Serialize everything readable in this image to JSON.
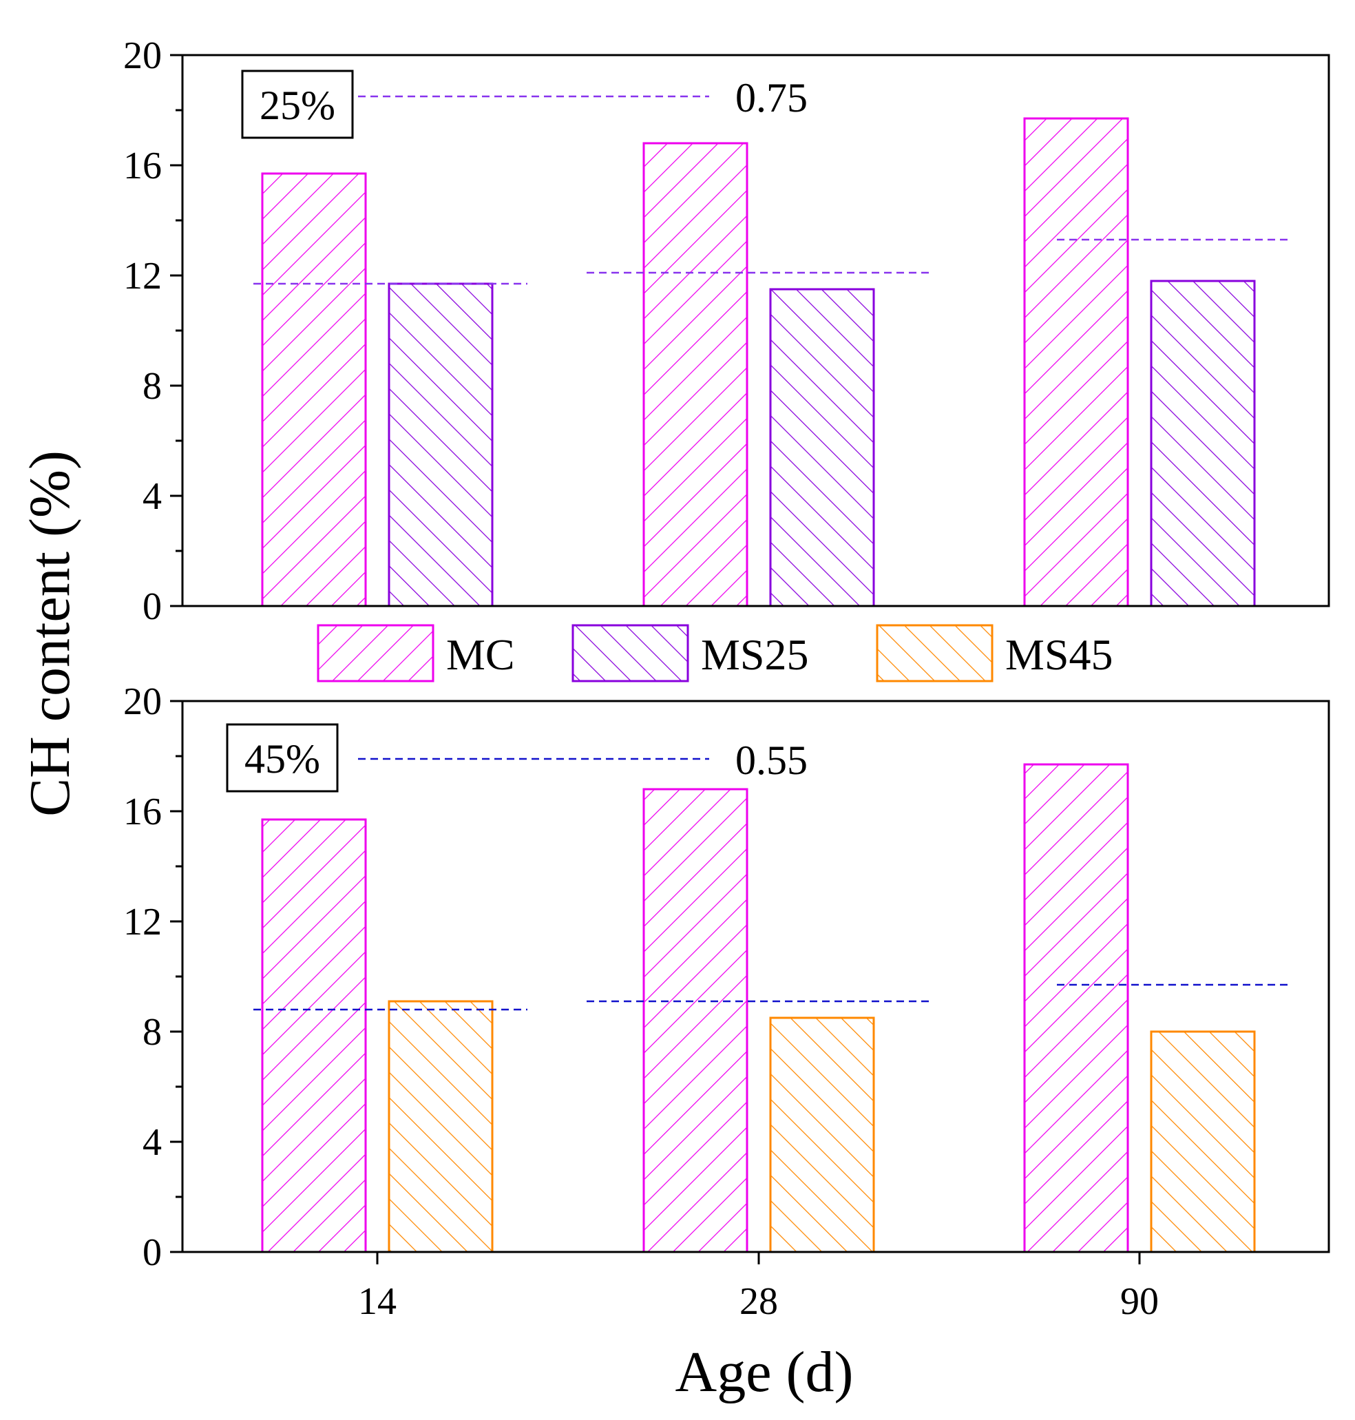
{
  "chart_data": [
    {
      "type": "bar",
      "panel": "top",
      "label": "25%",
      "categories": [
        "14",
        "28",
        "90"
      ],
      "ylim": [
        0,
        20
      ],
      "yticks": [
        0,
        4,
        8,
        12,
        16,
        20
      ],
      "series": [
        {
          "name": "MC",
          "color": "#ee00ee",
          "values": [
            15.7,
            16.8,
            17.7
          ]
        },
        {
          "name": "MS25",
          "color": "#8800dd",
          "values": [
            11.7,
            11.5,
            11.8
          ]
        }
      ],
      "reference_lines": [
        11.7,
        12.1,
        13.3
      ],
      "reference_color": "#8833ee",
      "annotation": {
        "line_value": 18.5,
        "text": "0.75"
      }
    },
    {
      "type": "bar",
      "panel": "bottom",
      "label": "45%",
      "categories": [
        "14",
        "28",
        "90"
      ],
      "ylim": [
        0,
        20
      ],
      "yticks": [
        0,
        4,
        8,
        12,
        16,
        20
      ],
      "series": [
        {
          "name": "MC",
          "color": "#ee00ee",
          "values": [
            15.7,
            16.8,
            17.7
          ]
        },
        {
          "name": "MS45",
          "color": "#ff8800",
          "values": [
            9.1,
            8.5,
            8.0
          ]
        }
      ],
      "reference_lines": [
        8.8,
        9.1,
        9.7
      ],
      "reference_color": "#1111cc",
      "annotation": {
        "line_value": 17.9,
        "text": "0.55"
      }
    }
  ],
  "legend": [
    {
      "name": "MC",
      "color": "#ee00ee",
      "hatch": "forward"
    },
    {
      "name": "MS25",
      "color": "#8800dd",
      "hatch": "back"
    },
    {
      "name": "MS45",
      "color": "#ff8800",
      "hatch": "back"
    }
  ],
  "ylabel": "CH content (%)",
  "xlabel": "Age (d)",
  "xtick_labels": [
    "14",
    "28",
    "90"
  ]
}
